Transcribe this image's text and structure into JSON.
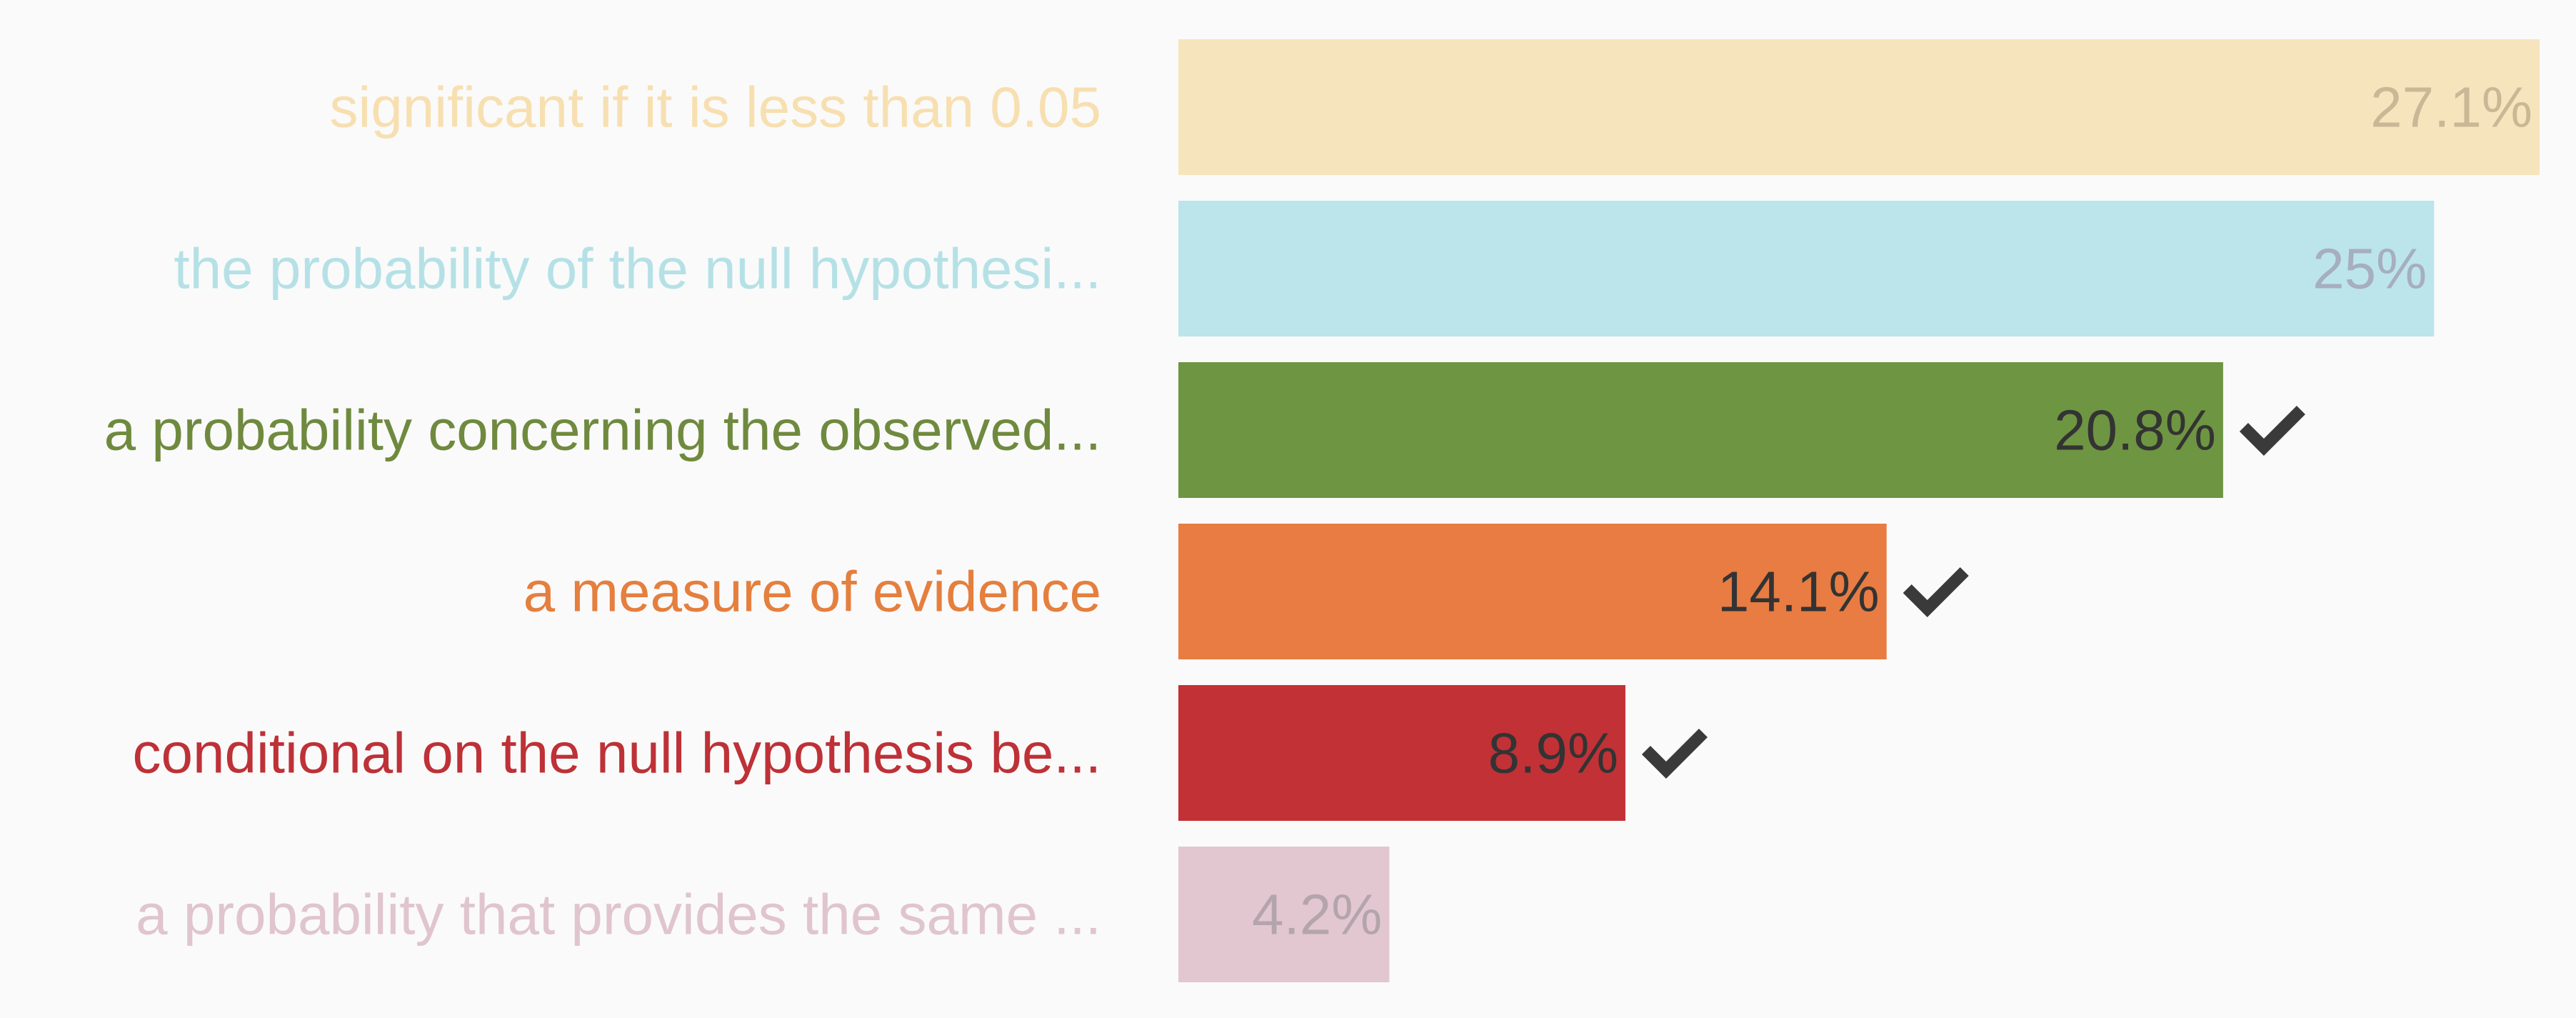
{
  "chart_data": {
    "type": "bar",
    "orientation": "horizontal",
    "value_format": "percent",
    "categories": [
      "significant if it is less than 0.05",
      "the probability of the null hypothesi...",
      "a probability concerning the observed...",
      "a measure of evidence",
      "conditional on the null hypothesis be...",
      "a probability that provides the same ..."
    ],
    "values": [
      27.1,
      25,
      20.8,
      14.1,
      8.9,
      4.2
    ],
    "value_labels": [
      "27.1%",
      "25%",
      "20.8%",
      "14.1%",
      "8.9%",
      "4.2%"
    ],
    "correct": [
      false,
      false,
      true,
      true,
      true,
      false
    ],
    "faded": [
      true,
      true,
      false,
      false,
      false,
      true
    ],
    "colors": [
      "#f6e4bd",
      "#bbe5ea",
      "#6e9541",
      "#e87c42",
      "#c23135",
      "#e2c7d0"
    ],
    "label_colors": [
      "#f7dfb0",
      "#b5e1e6",
      "#6f8a3e",
      "#e57f3e",
      "#be3137",
      "#e0c5ce"
    ],
    "value_label_colors": [
      "#c9b796",
      "#a7aebd",
      "#333333",
      "#333333",
      "#333333",
      "#b4a5ad"
    ],
    "check_icon": "check-icon",
    "xlim": [
      0,
      27.1
    ],
    "grid": false,
    "legend": "none"
  }
}
